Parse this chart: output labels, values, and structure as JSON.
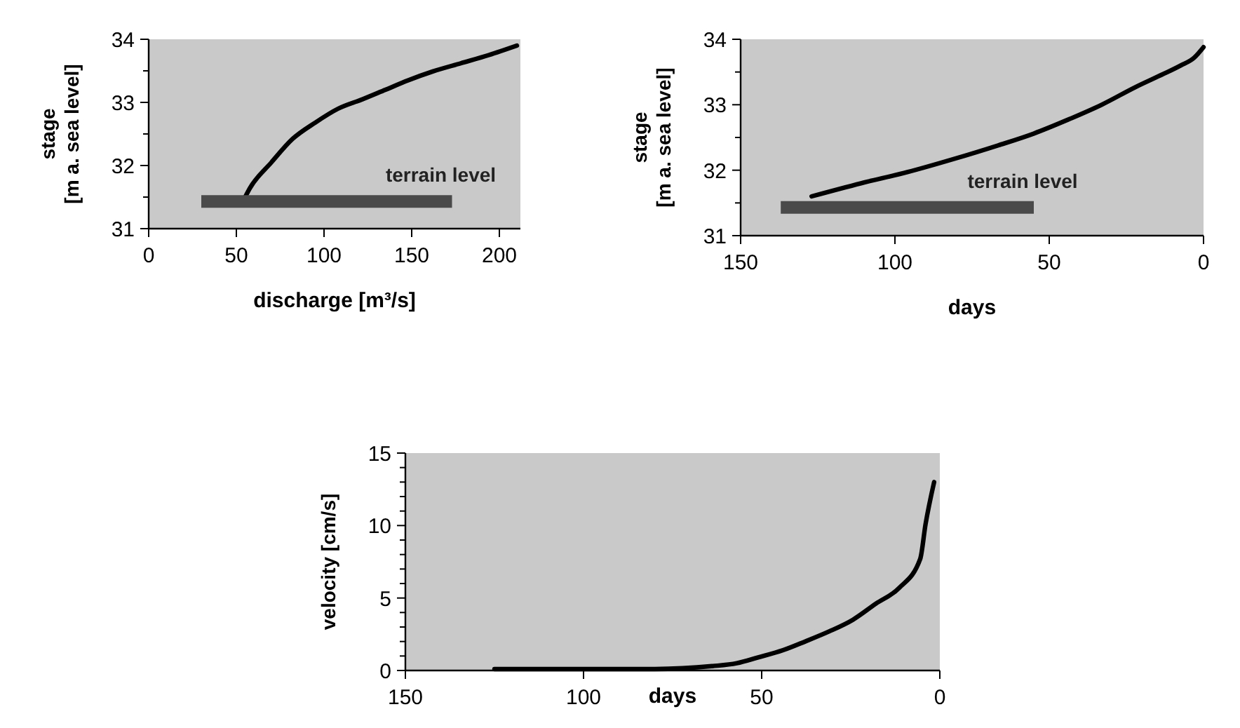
{
  "chart_data": [
    {
      "type": "line",
      "xlabel": "discharge [m³/s]",
      "ylabel": "stage\n[m a. sea level]",
      "xlim": [
        0,
        212
      ],
      "xticks": [
        0,
        50,
        100,
        150,
        200
      ],
      "ylim": [
        31,
        34
      ],
      "yticks": [
        31,
        {
          "value": 31.5,
          "label": null
        },
        32,
        {
          "value": 32.5,
          "label": null
        },
        33,
        {
          "value": 33.5,
          "label": null
        },
        34
      ],
      "grid": false,
      "marker": "none",
      "series": [
        {
          "color": "#000000",
          "x": [
            55,
            57.7,
            70,
            82,
            95,
            108,
            122,
            135,
            148,
            162,
            178,
            194,
            210
          ],
          "values": [
            31.5,
            31.64,
            32.05,
            32.42,
            32.68,
            32.9,
            33.05,
            33.2,
            33.35,
            33.49,
            33.62,
            33.75,
            33.9
          ]
        },
        {
          "name": "terrain level",
          "color": "#4a4a4a",
          "x": [
            30,
            173
          ],
          "values": [
            31.43,
            31.43
          ]
        }
      ]
    },
    {
      "type": "line",
      "xlabel": "days",
      "ylabel": "stage\n[m a. sea level]",
      "xlim": [
        150,
        0
      ],
      "xticks": [
        150,
        100,
        50,
        0
      ],
      "ylim": [
        31,
        34
      ],
      "yticks": [
        31,
        {
          "value": 31.5,
          "label": null
        },
        32,
        {
          "value": 32.5,
          "label": null
        },
        33,
        {
          "value": 33.5,
          "label": null
        },
        34
      ],
      "grid": false,
      "marker": "none",
      "series": [
        {
          "color": "#000000",
          "x": [
            127,
            111,
            96,
            81,
            66.5,
            55,
            44,
            33,
            22,
            13,
            7.4,
            3,
            0
          ],
          "values": [
            31.6,
            31.8,
            31.97,
            32.17,
            32.38,
            32.56,
            32.77,
            33.0,
            33.27,
            33.47,
            33.6,
            33.72,
            33.88
          ]
        },
        {
          "name": "terrain level",
          "color": "#4a4a4a",
          "x": [
            137,
            55
          ],
          "values": [
            31.43,
            31.43
          ]
        }
      ]
    },
    {
      "type": "line",
      "xlabel": "days",
      "ylabel": "velocity [cm/s]",
      "xlim": [
        150,
        0
      ],
      "xticks": [
        150,
        100,
        50,
        0
      ],
      "ylim": [
        0,
        15
      ],
      "yticks": [
        0,
        {
          "value": 1,
          "label": null
        },
        {
          "value": 2,
          "label": null
        },
        {
          "value": 3,
          "label": null
        },
        {
          "value": 4,
          "label": null
        },
        5,
        {
          "value": 6,
          "label": null
        },
        {
          "value": 7,
          "label": null
        },
        {
          "value": 8,
          "label": null
        },
        {
          "value": 9,
          "label": null
        },
        10,
        {
          "value": 11,
          "label": null
        },
        {
          "value": 12,
          "label": null
        },
        {
          "value": 13,
          "label": null
        },
        {
          "value": 14,
          "label": null
        },
        15
      ],
      "grid": false,
      "marker": "none",
      "series": [
        {
          "color": "#000000",
          "x": [
            125,
            100,
            80,
            64,
            57,
            51,
            44,
            37.8,
            31,
            24.4,
            18,
            11.4,
            5.5,
            4,
            1.6
          ],
          "values": [
            0.1,
            0.1,
            0.1,
            0.3,
            0.5,
            0.9,
            1.4,
            2.0,
            2.7,
            3.5,
            4.6,
            5.7,
            7.7,
            10.1,
            13.0
          ]
        }
      ]
    }
  ]
}
